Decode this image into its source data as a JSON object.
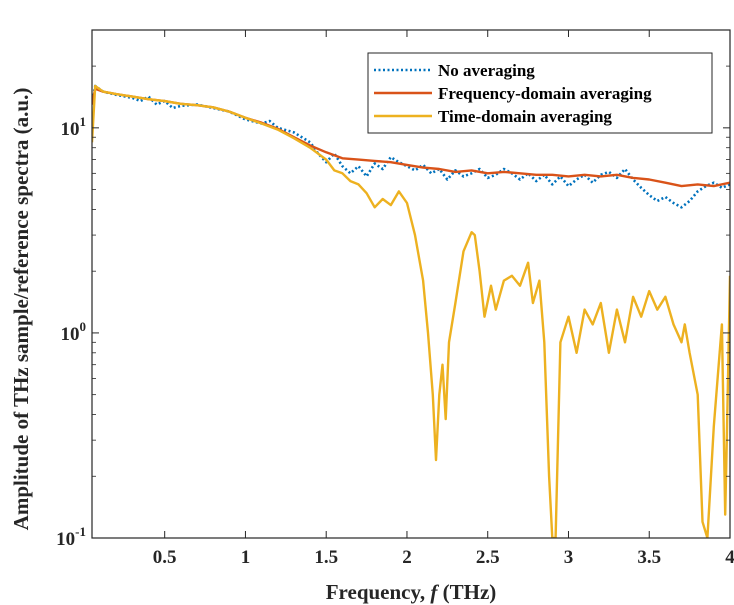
{
  "chart_data": {
    "type": "line",
    "title": "",
    "xlabel_parts": [
      "Frequency, ",
      "f",
      " (THz)"
    ],
    "ylabel": "Amplitude of THz sample/reference spectra (a.u.)",
    "xlim": [
      0.05,
      4.0
    ],
    "ylim": [
      0.1,
      30
    ],
    "yscale": "log",
    "x_ticks": [
      {
        "value": 0.5,
        "label": "0.5"
      },
      {
        "value": 1,
        "label": "1"
      },
      {
        "value": 1.5,
        "label": "1.5"
      },
      {
        "value": 2,
        "label": "2"
      },
      {
        "value": 2.5,
        "label": "2.5"
      },
      {
        "value": 3,
        "label": "3"
      },
      {
        "value": 3.5,
        "label": "3.5"
      },
      {
        "value": 4,
        "label": "4"
      }
    ],
    "y_ticks": [
      {
        "value": 0.1,
        "base": "10",
        "exp": "-1"
      },
      {
        "value": 1,
        "base": "10",
        "exp": "0"
      },
      {
        "value": 10,
        "base": "10",
        "exp": "1"
      }
    ],
    "legend_position": "top-right",
    "series": [
      {
        "name": "No averaging",
        "color": "#0072BD",
        "style": "dotted",
        "points": [
          [
            0.05,
            13
          ],
          [
            0.07,
            16
          ],
          [
            0.12,
            15
          ],
          [
            0.2,
            14.5
          ],
          [
            0.3,
            14
          ],
          [
            0.35,
            13.5
          ],
          [
            0.4,
            14.2
          ],
          [
            0.45,
            13
          ],
          [
            0.5,
            13.5
          ],
          [
            0.55,
            12.5
          ],
          [
            0.6,
            12.8
          ],
          [
            0.7,
            13
          ],
          [
            0.8,
            12.5
          ],
          [
            0.9,
            12
          ],
          [
            1.0,
            11
          ],
          [
            1.1,
            10.5
          ],
          [
            1.15,
            10.8
          ],
          [
            1.2,
            10
          ],
          [
            1.3,
            9.5
          ],
          [
            1.4,
            8.5
          ],
          [
            1.45,
            7.5
          ],
          [
            1.5,
            6.8
          ],
          [
            1.55,
            7.5
          ],
          [
            1.6,
            6.5
          ],
          [
            1.65,
            6
          ],
          [
            1.7,
            6.5
          ],
          [
            1.75,
            5.8
          ],
          [
            1.8,
            6.7
          ],
          [
            1.85,
            6.3
          ],
          [
            1.9,
            7.2
          ],
          [
            1.95,
            6.8
          ],
          [
            2.0,
            6.5
          ],
          [
            2.05,
            6.2
          ],
          [
            2.1,
            6.6
          ],
          [
            2.15,
            6.0
          ],
          [
            2.2,
            6.3
          ],
          [
            2.25,
            5.6
          ],
          [
            2.3,
            6.2
          ],
          [
            2.35,
            5.8
          ],
          [
            2.4,
            6.0
          ],
          [
            2.45,
            6.3
          ],
          [
            2.5,
            5.7
          ],
          [
            2.55,
            5.9
          ],
          [
            2.6,
            6.3
          ],
          [
            2.65,
            6.0
          ],
          [
            2.7,
            5.6
          ],
          [
            2.75,
            6.0
          ],
          [
            2.8,
            5.5
          ],
          [
            2.85,
            5.9
          ],
          [
            2.9,
            5.3
          ],
          [
            2.95,
            5.8
          ],
          [
            3.0,
            5.2
          ],
          [
            3.05,
            5.6
          ],
          [
            3.1,
            5.9
          ],
          [
            3.15,
            5.4
          ],
          [
            3.2,
            5.9
          ],
          [
            3.25,
            6.1
          ],
          [
            3.3,
            5.7
          ],
          [
            3.35,
            6.3
          ],
          [
            3.4,
            5.6
          ],
          [
            3.45,
            5.1
          ],
          [
            3.5,
            4.7
          ],
          [
            3.55,
            4.4
          ],
          [
            3.6,
            4.6
          ],
          [
            3.65,
            4.3
          ],
          [
            3.7,
            4.1
          ],
          [
            3.75,
            4.4
          ],
          [
            3.8,
            4.9
          ],
          [
            3.85,
            5.2
          ],
          [
            3.9,
            5.4
          ],
          [
            3.95,
            5.1
          ],
          [
            4.0,
            5.3
          ]
        ]
      },
      {
        "name": "Frequency-domain averaging",
        "color": "#D95319",
        "style": "solid",
        "points": [
          [
            0.05,
            13
          ],
          [
            0.07,
            15.5
          ],
          [
            0.12,
            15
          ],
          [
            0.2,
            14.6
          ],
          [
            0.3,
            14.2
          ],
          [
            0.4,
            13.8
          ],
          [
            0.5,
            13.5
          ],
          [
            0.6,
            13.1
          ],
          [
            0.7,
            12.9
          ],
          [
            0.8,
            12.6
          ],
          [
            0.9,
            12.0
          ],
          [
            1.0,
            11.2
          ],
          [
            1.1,
            10.6
          ],
          [
            1.2,
            9.9
          ],
          [
            1.3,
            9.0
          ],
          [
            1.4,
            8.2
          ],
          [
            1.5,
            7.6
          ],
          [
            1.6,
            7.1
          ],
          [
            1.7,
            7.0
          ],
          [
            1.8,
            6.9
          ],
          [
            1.9,
            6.8
          ],
          [
            2.0,
            6.6
          ],
          [
            2.1,
            6.4
          ],
          [
            2.2,
            6.3
          ],
          [
            2.3,
            6.1
          ],
          [
            2.4,
            6.2
          ],
          [
            2.5,
            6.0
          ],
          [
            2.6,
            6.1
          ],
          [
            2.7,
            6.0
          ],
          [
            2.8,
            5.9
          ],
          [
            2.9,
            5.9
          ],
          [
            3.0,
            5.8
          ],
          [
            3.1,
            5.9
          ],
          [
            3.2,
            5.8
          ],
          [
            3.3,
            5.9
          ],
          [
            3.4,
            5.7
          ],
          [
            3.5,
            5.6
          ],
          [
            3.6,
            5.4
          ],
          [
            3.7,
            5.2
          ],
          [
            3.8,
            5.3
          ],
          [
            3.9,
            5.2
          ],
          [
            4.0,
            5.4
          ]
        ]
      },
      {
        "name": "Time-domain averaging",
        "color": "#EDB120",
        "style": "solid",
        "points": [
          [
            0.05,
            8.5
          ],
          [
            0.07,
            16
          ],
          [
            0.12,
            15
          ],
          [
            0.2,
            14.6
          ],
          [
            0.3,
            14.2
          ],
          [
            0.4,
            13.8
          ],
          [
            0.5,
            13.5
          ],
          [
            0.6,
            13.1
          ],
          [
            0.7,
            12.9
          ],
          [
            0.8,
            12.6
          ],
          [
            0.9,
            12.0
          ],
          [
            1.0,
            11.2
          ],
          [
            1.1,
            10.5
          ],
          [
            1.2,
            9.8
          ],
          [
            1.3,
            8.9
          ],
          [
            1.4,
            8.0
          ],
          [
            1.5,
            7.0
          ],
          [
            1.55,
            6.2
          ],
          [
            1.6,
            6.0
          ],
          [
            1.65,
            5.5
          ],
          [
            1.7,
            5.3
          ],
          [
            1.75,
            4.8
          ],
          [
            1.8,
            4.1
          ],
          [
            1.85,
            4.5
          ],
          [
            1.9,
            4.2
          ],
          [
            1.95,
            4.9
          ],
          [
            2.0,
            4.3
          ],
          [
            2.05,
            3.0
          ],
          [
            2.1,
            1.8
          ],
          [
            2.13,
            1.0
          ],
          [
            2.16,
            0.5
          ],
          [
            2.18,
            0.24
          ],
          [
            2.2,
            0.5
          ],
          [
            2.22,
            0.7
          ],
          [
            2.24,
            0.38
          ],
          [
            2.26,
            0.9
          ],
          [
            2.3,
            1.4
          ],
          [
            2.35,
            2.5
          ],
          [
            2.4,
            3.1
          ],
          [
            2.42,
            3.0
          ],
          [
            2.45,
            2.0
          ],
          [
            2.48,
            1.2
          ],
          [
            2.52,
            1.7
          ],
          [
            2.55,
            1.3
          ],
          [
            2.6,
            1.8
          ],
          [
            2.65,
            1.9
          ],
          [
            2.7,
            1.7
          ],
          [
            2.75,
            2.2
          ],
          [
            2.78,
            1.4
          ],
          [
            2.82,
            1.8
          ],
          [
            2.85,
            0.9
          ],
          [
            2.88,
            0.2
          ],
          [
            2.9,
            0.1
          ],
          [
            2.92,
            0.1
          ],
          [
            2.95,
            0.9
          ],
          [
            3.0,
            1.2
          ],
          [
            3.05,
            0.8
          ],
          [
            3.1,
            1.3
          ],
          [
            3.15,
            1.1
          ],
          [
            3.2,
            1.4
          ],
          [
            3.25,
            0.8
          ],
          [
            3.3,
            1.3
          ],
          [
            3.35,
            0.9
          ],
          [
            3.4,
            1.5
          ],
          [
            3.45,
            1.2
          ],
          [
            3.5,
            1.6
          ],
          [
            3.55,
            1.3
          ],
          [
            3.6,
            1.5
          ],
          [
            3.65,
            1.1
          ],
          [
            3.7,
            0.9
          ],
          [
            3.72,
            1.1
          ],
          [
            3.75,
            0.8
          ],
          [
            3.8,
            0.5
          ],
          [
            3.83,
            0.12
          ],
          [
            3.86,
            0.1
          ],
          [
            3.9,
            0.35
          ],
          [
            3.95,
            1.1
          ],
          [
            3.97,
            0.13
          ],
          [
            3.98,
            0.3
          ],
          [
            4.0,
            1.9
          ]
        ]
      }
    ]
  }
}
